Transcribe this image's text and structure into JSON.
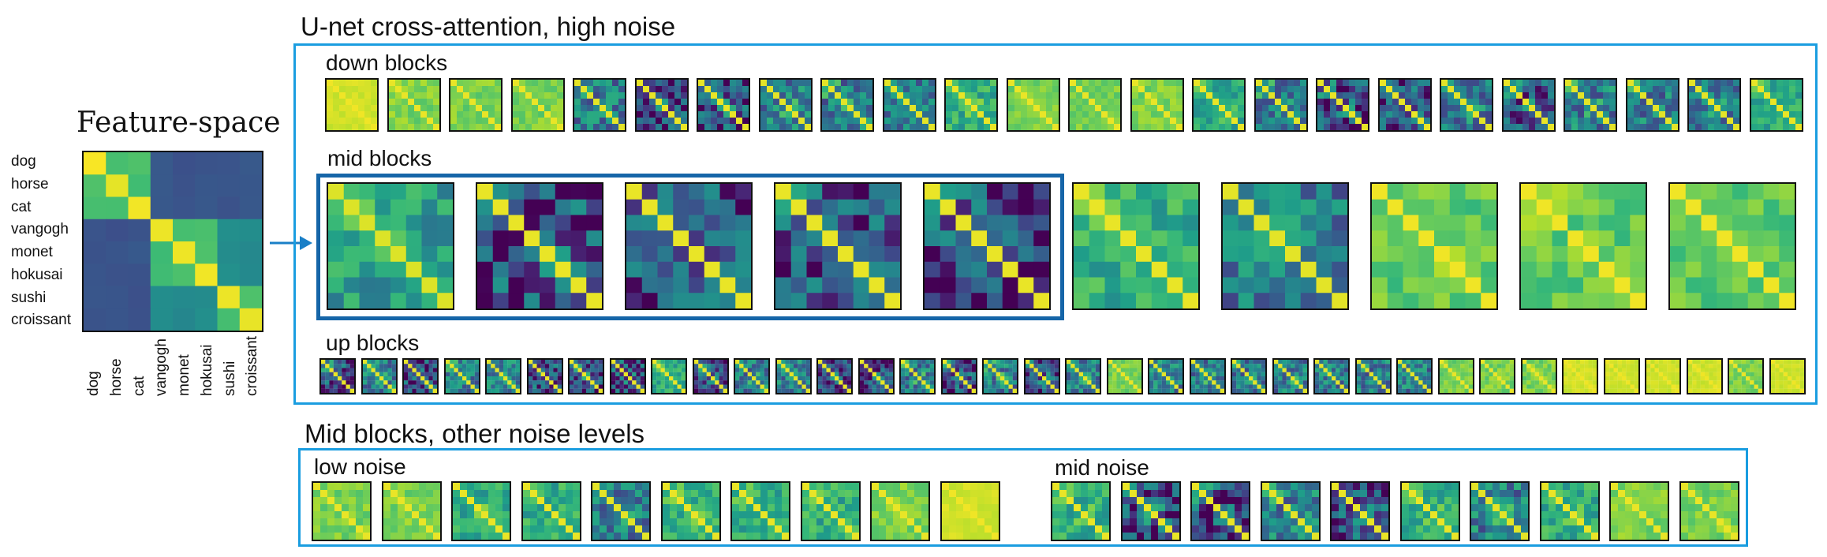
{
  "feature_space": {
    "title": "Feature-space",
    "row_labels": [
      "dog",
      "horse",
      "cat",
      "vangogh",
      "monet",
      "hokusai",
      "sushi",
      "croissant"
    ],
    "col_labels": [
      "dog",
      "horse",
      "cat",
      "vangogh",
      "monet",
      "hokusai",
      "sushi",
      "croissant"
    ]
  },
  "high_noise": {
    "title": "U-net cross-attention, high noise",
    "down_label": "down blocks",
    "mid_label": "mid blocks",
    "up_label": "up blocks",
    "down_styles": [
      "yellow",
      "pale",
      "pale",
      "pale",
      "teal",
      "dark",
      "dark",
      "teal",
      "teal",
      "teal",
      "light",
      "pale",
      "pale",
      "pale",
      "light",
      "teal",
      "dark",
      "dark",
      "teal",
      "dark",
      "teal",
      "teal",
      "teal",
      "light"
    ],
    "mid_styles": [
      "mid",
      "dark",
      "dark",
      "dark",
      "dark",
      "light",
      "teal",
      "yellowgreen",
      "yellowgreen",
      "yellowgreen"
    ],
    "up_styles": [
      "dark",
      "teal",
      "dark",
      "teal",
      "teal",
      "dark",
      "dark",
      "dark",
      "light",
      "dark",
      "teal",
      "teal",
      "dark",
      "dark",
      "teal",
      "dark",
      "teal",
      "dark",
      "teal",
      "pale",
      "teal",
      "teal",
      "teal",
      "teal",
      "teal",
      "teal",
      "teal",
      "pale",
      "pale",
      "pale",
      "yellow",
      "yellow",
      "yellow",
      "yellow",
      "pale",
      "yellow"
    ]
  },
  "other_noise": {
    "title": "Mid blocks, other noise levels",
    "low_label": "low noise",
    "mid_label": "mid noise",
    "low_styles": [
      "pale",
      "pale",
      "light",
      "light",
      "teal",
      "light",
      "light",
      "light",
      "pale",
      "yellow"
    ],
    "mid_styles": [
      "light",
      "dark",
      "dark",
      "teal",
      "dark",
      "light",
      "teal",
      "light",
      "pale",
      "pale"
    ]
  },
  "colors": {
    "frame_blue": "#1a9de0",
    "highlight_blue": "#1565a8",
    "arrow_blue": "#1a7fc7"
  }
}
